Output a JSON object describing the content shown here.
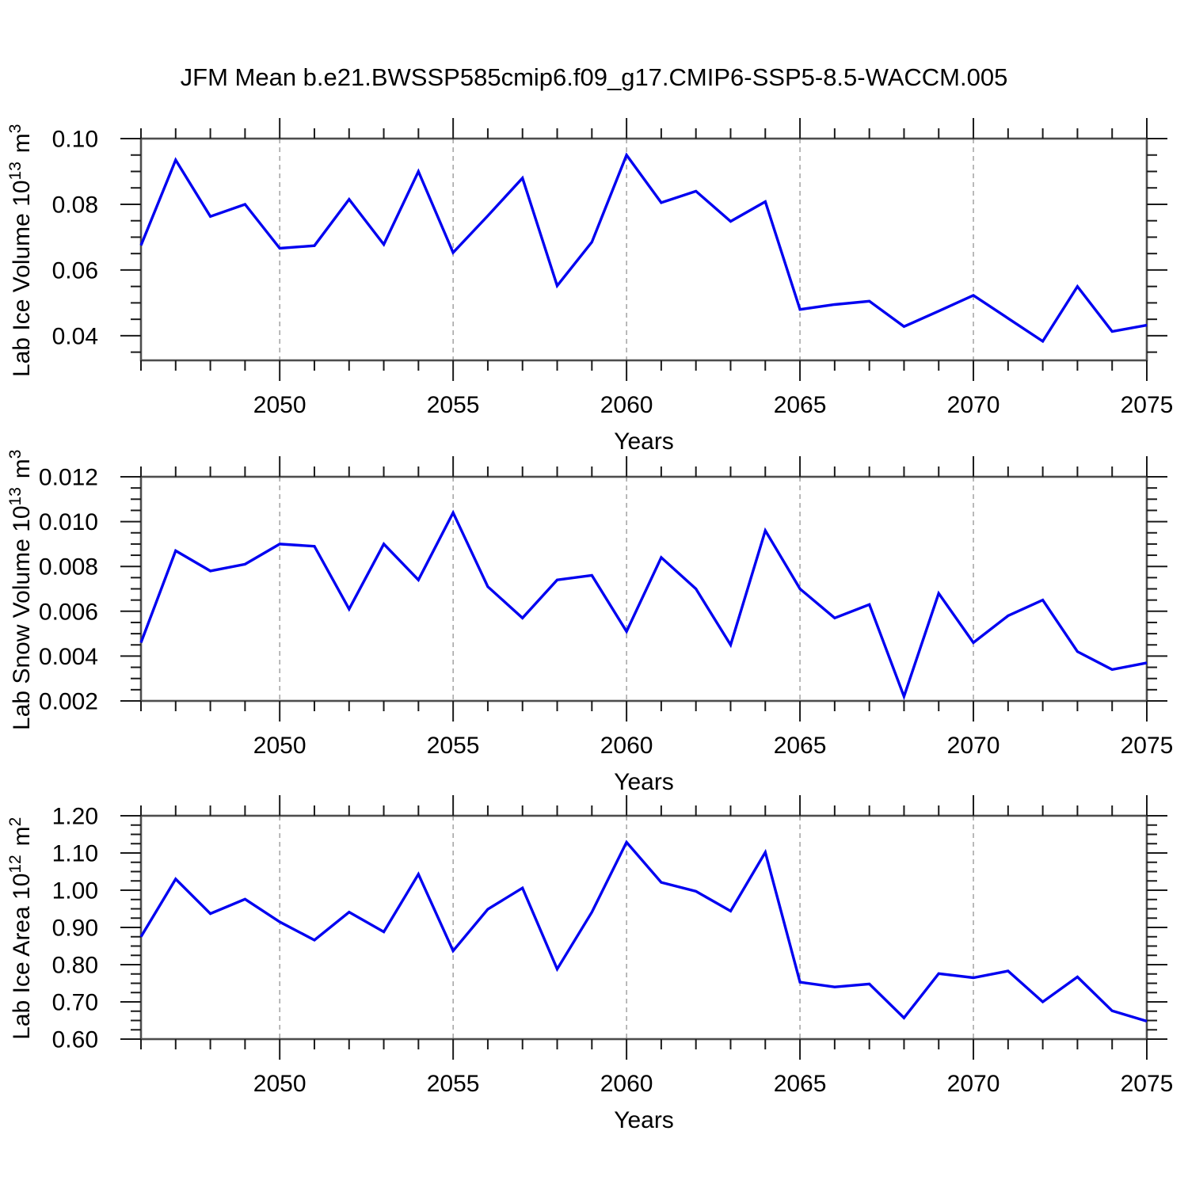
{
  "title": "JFM Mean b.e21.BWSSP585cmip6.f09_g17.CMIP6-SSP5-8.5-WACCM.005",
  "colors": {
    "line": "#0000f0",
    "frame": "#4d4d4d",
    "tick": "#1a1a1a",
    "grid": "#949494",
    "text": "#000000",
    "background": "#ffffff"
  },
  "x_axis": {
    "label": "Years",
    "min": 2046,
    "max": 2075,
    "major_ticks": [
      2050,
      2055,
      2060,
      2065,
      2070,
      2075
    ],
    "major_tick_labels": [
      "2050",
      "2055",
      "2060",
      "2065",
      "2070",
      "2075"
    ],
    "minor_tick_step": 1,
    "gridline_years": [
      2050,
      2055,
      2060,
      2065,
      2070
    ]
  },
  "years": [
    2046,
    2047,
    2048,
    2049,
    2050,
    2051,
    2052,
    2053,
    2054,
    2055,
    2056,
    2057,
    2058,
    2059,
    2060,
    2061,
    2062,
    2063,
    2064,
    2065,
    2066,
    2067,
    2068,
    2069,
    2070,
    2071,
    2072,
    2073,
    2074,
    2075
  ],
  "chart_data": [
    {
      "type": "line",
      "title": "",
      "ylabel": "Lab Ice Volume 10¹³ m³",
      "xlabel": "Years",
      "ylim": [
        0.0325,
        0.1
      ],
      "y_major_ticks": [
        0.04,
        0.06,
        0.08,
        0.1
      ],
      "y_major_labels": [
        "0.04",
        "0.06",
        "0.08",
        "0.10"
      ],
      "y_minor_step": 0.005,
      "grid": "vertical-dashed",
      "legend": "none",
      "values": [
        0.0675,
        0.0935,
        0.0763,
        0.08,
        0.0666,
        0.0674,
        0.0815,
        0.0678,
        0.09,
        0.0653,
        0.0765,
        0.088,
        0.0552,
        0.0685,
        0.095,
        0.0805,
        0.084,
        0.0748,
        0.0808,
        0.048,
        0.0495,
        0.0505,
        0.0428,
        0.0475,
        0.0523,
        0.0453,
        0.0383,
        0.055,
        0.0413,
        0.0432
      ]
    },
    {
      "type": "line",
      "title": "",
      "ylabel": "Lab Snow Volume 10¹³ m³",
      "xlabel": "Years",
      "ylim": [
        0.002,
        0.012
      ],
      "y_major_ticks": [
        0.002,
        0.004,
        0.006,
        0.008,
        0.01,
        0.012
      ],
      "y_major_labels": [
        "0.002",
        "0.004",
        "0.006",
        "0.008",
        "0.010",
        "0.012"
      ],
      "y_minor_step": 0.0005,
      "grid": "vertical-dashed",
      "legend": "none",
      "values": [
        0.0046,
        0.0087,
        0.0078,
        0.0081,
        0.009,
        0.0089,
        0.0061,
        0.009,
        0.0074,
        0.0104,
        0.0071,
        0.0057,
        0.0074,
        0.0076,
        0.0051,
        0.0084,
        0.007,
        0.0045,
        0.0096,
        0.007,
        0.0057,
        0.0063,
        0.0022,
        0.0068,
        0.0046,
        0.0058,
        0.0065,
        0.0042,
        0.0034,
        0.0037
      ]
    },
    {
      "type": "line",
      "title": "",
      "ylabel": "Lab Ice Area 10¹² m²",
      "xlabel": "Years",
      "ylim": [
        0.6,
        1.2
      ],
      "y_major_ticks": [
        0.6,
        0.7,
        0.8,
        0.9,
        1.0,
        1.1,
        1.2
      ],
      "y_major_labels": [
        "0.60",
        "0.70",
        "0.80",
        "0.90",
        "1.00",
        "1.10",
        "1.20"
      ],
      "y_minor_step": 0.025,
      "grid": "vertical-dashed",
      "legend": "none",
      "values": [
        0.875,
        1.03,
        0.937,
        0.976,
        0.915,
        0.866,
        0.941,
        0.888,
        1.043,
        0.837,
        0.949,
        1.006,
        0.788,
        0.941,
        1.129,
        1.021,
        0.997,
        0.944,
        1.102,
        0.753,
        0.74,
        0.748,
        0.657,
        0.776,
        0.765,
        0.783,
        0.7,
        0.767,
        0.676,
        0.648
      ]
    }
  ]
}
